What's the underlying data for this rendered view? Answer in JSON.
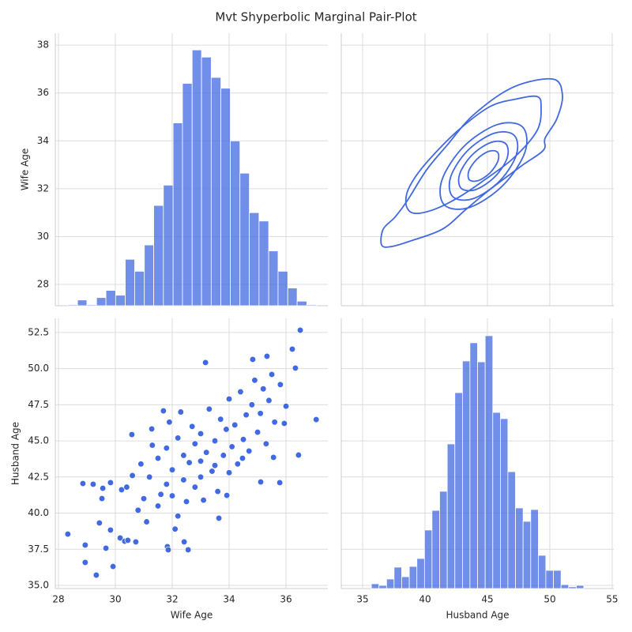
{
  "title": "Mvt Shyperbolic Marginal Pair-Plot",
  "chart_data": [
    {
      "type": "histogram",
      "ylabel": "Wife Age",
      "color": "#4169e1",
      "grid": true,
      "xlim": [
        27.89,
        37.47
      ],
      "ylim": [
        27.11,
        38.5
      ],
      "xticks": [
        28,
        30,
        32,
        34,
        36
      ],
      "yticks": [
        28,
        30,
        32,
        34,
        36,
        38
      ],
      "xticklabels": false,
      "yticklabels": true,
      "bins": [
        28.33,
        28.67,
        29.0,
        29.34,
        29.67,
        30.01,
        30.35,
        30.68,
        31.02,
        31.35,
        31.69,
        32.03,
        32.36,
        32.7,
        33.03,
        33.37,
        33.71,
        34.04,
        34.38,
        34.71,
        35.05,
        35.39,
        35.72,
        36.06,
        36.39,
        36.73,
        37.07
      ],
      "values": [
        27.15,
        27.35,
        27.15,
        27.45,
        27.75,
        27.55,
        29.05,
        28.55,
        29.65,
        31.3,
        32.15,
        34.75,
        36.4,
        37.8,
        37.5,
        36.65,
        36.2,
        34.0,
        32.65,
        31.0,
        30.65,
        29.4,
        28.55,
        27.85,
        27.3,
        27.15
      ]
    },
    {
      "type": "kde",
      "color": "#4169e1",
      "grid": true,
      "xlim": [
        33.29,
        55.13
      ],
      "ylim": [
        27.11,
        38.5
      ],
      "xticks": [
        35,
        40,
        45,
        50,
        55
      ],
      "yticks": [
        28,
        30,
        32,
        34,
        36,
        38
      ],
      "xticklabels": false,
      "yticklabels": false,
      "contours": [
        {
          "x": [
            36.52,
            36.65,
            37.59,
            38.54,
            40.13,
            41.71,
            43.92,
            47.09,
            50.25,
            51.01,
            50.57,
            49.62,
            49.49,
            47.72,
            45.19,
            43.29,
            41.39,
            38.86,
            37.28
          ],
          "y": [
            29.65,
            30.31,
            30.81,
            31.47,
            32.79,
            33.78,
            35.1,
            36.25,
            36.58,
            35.92,
            34.93,
            34.11,
            33.61,
            32.95,
            31.96,
            31.14,
            30.31,
            29.82,
            29.58
          ]
        },
        {
          "x": [
            38.54,
            39.18,
            40.44,
            42.66,
            45.19,
            47.41,
            48.99,
            49.3,
            48.99,
            47.09,
            44.56,
            42.66,
            40.76,
            39.18,
            38.54
          ],
          "y": [
            31.8,
            32.46,
            33.28,
            34.44,
            35.43,
            35.76,
            35.85,
            35.43,
            34.44,
            33.28,
            32.29,
            31.63,
            31.14,
            30.97,
            31.23
          ]
        },
        {
          "x": [
            47.82,
            48.01,
            46.25,
            43.58,
            41.55,
            41.36,
            43.12,
            45.79
          ],
          "y": [
            34.58,
            33.53,
            32.14,
            31.22,
            31.32,
            32.37,
            33.77,
            34.68
          ]
        },
        {
          "x": [
            47.15,
            47.31,
            45.94,
            43.83,
            42.22,
            42.06,
            43.43,
            45.54
          ],
          "y": [
            34.23,
            33.4,
            32.3,
            31.58,
            31.67,
            32.5,
            33.6,
            34.32
          ]
        },
        {
          "x": [
            46.47,
            46.58,
            45.58,
            44.05,
            42.89,
            42.78,
            43.79,
            45.32
          ],
          "y": [
            33.88,
            33.28,
            32.49,
            31.96,
            32.02,
            32.62,
            33.42,
            33.94
          ]
        },
        {
          "x": [
            45.8,
            45.85,
            45.22,
            44.27,
            43.56,
            43.51,
            44.15,
            45.09
          ],
          "y": [
            33.53,
            33.17,
            32.67,
            32.34,
            32.37,
            32.74,
            33.23,
            33.56
          ]
        }
      ]
    },
    {
      "type": "scatter",
      "xlabel": "Wife Age",
      "ylabel": "Husband Age",
      "color": "#4169e1",
      "grid": true,
      "xlim": [
        27.89,
        37.47
      ],
      "ylim": [
        34.78,
        53.48
      ],
      "xticks": [
        28,
        30,
        32,
        34,
        36
      ],
      "yticks": [
        {
          "value": 35,
          "label": "35.0"
        },
        {
          "value": 37.5,
          "label": "37.5"
        },
        {
          "value": 40,
          "label": "40.0"
        },
        {
          "value": 42.5,
          "label": "42.5"
        },
        {
          "value": 45,
          "label": "45.0"
        },
        {
          "value": 47.5,
          "label": "47.5"
        },
        {
          "value": 50,
          "label": "50.0"
        },
        {
          "value": 52.5,
          "label": "52.5"
        }
      ],
      "xticklabels": true,
      "yticklabels": true,
      "x": [
        28.33,
        28.86,
        28.94,
        28.94,
        29.22,
        29.33,
        29.44,
        29.53,
        29.56,
        29.67,
        29.83,
        29.83,
        29.92,
        30.17,
        30.22,
        30.33,
        30.44,
        30.58,
        30.72,
        31.28,
        31.69,
        31.83,
        31.86,
        32.42,
        32.56,
        33.17,
        33.64,
        33.92,
        34.47,
        35.11,
        35.56,
        35.78,
        36.22,
        36.33,
        36.44,
        36.5,
        37.06,
        35.94,
        34.83,
        35.33,
        31.0,
        31.2,
        31.5,
        31.5,
        31.8,
        31.8,
        32.0,
        32.0,
        32.2,
        32.2,
        32.4,
        32.4,
        32.5,
        32.6,
        32.7,
        32.8,
        32.8,
        33.0,
        33.0,
        33.0,
        33.1,
        33.2,
        33.3,
        33.4,
        33.5,
        33.5,
        33.6,
        33.7,
        33.8,
        33.9,
        34.0,
        34.0,
        34.1,
        34.2,
        34.3,
        34.4,
        34.5,
        34.6,
        34.7,
        34.8,
        34.9,
        35.0,
        35.1,
        35.2,
        35.3,
        35.4,
        35.5,
        35.6,
        35.8,
        36.0,
        30.6,
        30.8,
        30.9,
        31.1,
        31.3,
        31.6,
        31.9,
        32.1,
        32.3,
        30.4
      ],
      "y": [
        38.55,
        42.05,
        37.79,
        36.59,
        42.0,
        35.71,
        39.32,
        41.01,
        41.72,
        37.57,
        38.83,
        42.11,
        36.31,
        38.28,
        41.62,
        38.06,
        38.12,
        45.44,
        38.01,
        45.83,
        47.08,
        37.68,
        37.46,
        38.01,
        37.46,
        50.42,
        39.65,
        41.23,
        43.8,
        42.16,
        43.86,
        42.11,
        51.35,
        50.04,
        44.02,
        52.66,
        46.48,
        46.21,
        50.64,
        50.86,
        41.0,
        42.5,
        40.5,
        43.8,
        42.0,
        44.5,
        41.2,
        43.0,
        39.8,
        45.2,
        42.3,
        44.0,
        40.8,
        43.5,
        46.0,
        41.8,
        44.8,
        42.5,
        43.6,
        45.5,
        40.9,
        44.2,
        47.2,
        42.9,
        45.0,
        43.3,
        41.5,
        46.5,
        44.0,
        45.8,
        42.8,
        47.9,
        44.6,
        46.1,
        43.4,
        48.4,
        45.1,
        46.8,
        44.3,
        47.5,
        49.2,
        45.6,
        46.9,
        48.6,
        44.8,
        47.8,
        49.6,
        46.3,
        48.9,
        47.4,
        42.6,
        40.2,
        43.4,
        39.4,
        44.7,
        41.3,
        46.3,
        38.9,
        47.0,
        41.8
      ]
    },
    {
      "type": "histogram",
      "xlabel": "Husband Age",
      "color": "#4169e1",
      "grid": true,
      "xlim": [
        33.29,
        55.13
      ],
      "ylim": [
        34.78,
        53.48
      ],
      "xticks": [
        35,
        40,
        45,
        50,
        55
      ],
      "yticks": [
        35,
        37.5,
        40,
        42.5,
        45,
        47.5,
        50,
        52.5
      ],
      "xticklabels": true,
      "yticklabels": false,
      "bins": [
        35.7,
        36.31,
        36.92,
        37.52,
        38.13,
        38.74,
        39.35,
        39.96,
        40.56,
        41.17,
        41.78,
        42.39,
        43.0,
        43.6,
        44.21,
        44.82,
        45.43,
        46.04,
        46.64,
        47.25,
        47.86,
        48.47,
        49.08,
        49.68,
        50.29,
        50.9,
        51.51,
        52.12,
        52.72
      ],
      "values": [
        35.11,
        35.0,
        35.44,
        36.26,
        35.6,
        36.31,
        36.86,
        38.83,
        40.19,
        41.51,
        44.79,
        48.34,
        50.53,
        51.79,
        50.47,
        52.28,
        46.97,
        46.54,
        42.87,
        40.36,
        39.43,
        40.25,
        37.08,
        36.04,
        36.04,
        35.05,
        34.9,
        35.0
      ]
    }
  ]
}
